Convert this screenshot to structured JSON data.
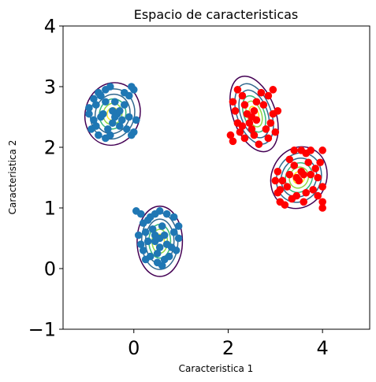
{
  "chart_data": {
    "type": "scatter",
    "title": "Espacio de caracteristicas",
    "xlabel": "Caracteristica 1",
    "ylabel": "Caracteristica 2",
    "xlim": [
      -1.5,
      5
    ],
    "ylim": [
      -1,
      4
    ],
    "xticks": [
      {
        "value": 0,
        "label": "0"
      },
      {
        "value": 2,
        "label": "2"
      },
      {
        "value": 4,
        "label": "4"
      }
    ],
    "yticks": [
      {
        "value": -1,
        "label": "−1"
      },
      {
        "value": 0,
        "label": "0"
      },
      {
        "value": 1,
        "label": "1"
      },
      {
        "value": 2,
        "label": "2"
      },
      {
        "value": 3,
        "label": "3"
      },
      {
        "value": 4,
        "label": "4"
      }
    ],
    "grid": false,
    "legend": "none",
    "contour_colors": [
      "#440154",
      "#31688e",
      "#35b779",
      "#90d743",
      "#fde725"
    ],
    "series": [
      {
        "color": "#1f77b4",
        "points": [
          [
            -0.95,
            2.55
          ],
          [
            -0.9,
            2.3
          ],
          [
            -0.85,
            2.45
          ],
          [
            -0.8,
            2.7
          ],
          [
            -0.8,
            2.35
          ],
          [
            -0.85,
            2.8
          ],
          [
            -0.7,
            2.85
          ],
          [
            -0.75,
            2.2
          ],
          [
            -0.6,
            2.15
          ],
          [
            -0.75,
            2.9
          ],
          [
            -0.6,
            2.95
          ],
          [
            -0.5,
            3.0
          ],
          [
            -0.45,
            2.6
          ],
          [
            -0.35,
            2.55
          ],
          [
            -0.4,
            2.5
          ],
          [
            -0.3,
            2.6
          ],
          [
            -0.25,
            2.45
          ],
          [
            -0.55,
            2.3
          ],
          [
            -0.65,
            2.55
          ],
          [
            -0.5,
            2.2
          ],
          [
            -0.2,
            2.9
          ],
          [
            -0.1,
            2.85
          ],
          [
            0.0,
            2.95
          ],
          [
            -0.05,
            3.0
          ],
          [
            -0.15,
            2.3
          ],
          [
            -0.05,
            2.2
          ],
          [
            0.0,
            2.25
          ],
          [
            -0.2,
            2.7
          ],
          [
            -0.4,
            2.75
          ],
          [
            -0.3,
            2.35
          ],
          [
            -0.7,
            2.5
          ],
          [
            -0.95,
            2.65
          ],
          [
            0.05,
            2.45
          ],
          [
            -0.1,
            2.5
          ],
          [
            -0.6,
            2.75
          ],
          [
            -0.45,
            2.4
          ],
          [
            0.05,
            0.95
          ],
          [
            0.15,
            0.9
          ],
          [
            0.2,
            0.75
          ],
          [
            0.35,
            0.85
          ],
          [
            0.45,
            0.9
          ],
          [
            0.55,
            0.95
          ],
          [
            0.7,
            0.9
          ],
          [
            0.85,
            0.85
          ],
          [
            0.95,
            0.7
          ],
          [
            0.1,
            0.55
          ],
          [
            0.25,
            0.6
          ],
          [
            0.3,
            0.45
          ],
          [
            0.2,
            0.3
          ],
          [
            0.35,
            0.2
          ],
          [
            0.5,
            0.25
          ],
          [
            0.45,
            0.45
          ],
          [
            0.55,
            0.5
          ],
          [
            0.65,
            0.55
          ],
          [
            0.7,
            0.4
          ],
          [
            0.8,
            0.35
          ],
          [
            0.9,
            0.3
          ],
          [
            0.5,
            0.1
          ],
          [
            0.65,
            0.15
          ],
          [
            0.75,
            0.2
          ],
          [
            0.95,
            0.5
          ],
          [
            0.4,
            0.65
          ],
          [
            0.6,
            0.7
          ],
          [
            0.25,
            0.15
          ],
          [
            0.55,
            0.35
          ],
          [
            0.3,
            0.8
          ],
          [
            0.85,
            0.6
          ],
          [
            0.15,
            0.4
          ],
          [
            0.6,
            0.05
          ],
          [
            0.45,
            0.55
          ]
        ]
      },
      {
        "color": "#ff0000",
        "points": [
          [
            2.1,
            2.75
          ],
          [
            2.2,
            2.95
          ],
          [
            2.3,
            2.85
          ],
          [
            2.15,
            2.6
          ],
          [
            2.05,
            2.2
          ],
          [
            2.1,
            2.1
          ],
          [
            2.35,
            2.15
          ],
          [
            2.4,
            2.55
          ],
          [
            2.5,
            2.5
          ],
          [
            2.55,
            2.6
          ],
          [
            2.6,
            2.45
          ],
          [
            2.45,
            2.4
          ],
          [
            2.5,
            2.3
          ],
          [
            2.3,
            2.35
          ],
          [
            2.75,
            2.7
          ],
          [
            2.8,
            2.3
          ],
          [
            2.85,
            2.15
          ],
          [
            2.65,
            2.05
          ],
          [
            2.95,
            2.55
          ],
          [
            2.9,
            2.4
          ],
          [
            3.0,
            2.25
          ],
          [
            2.7,
            2.9
          ],
          [
            2.85,
            2.85
          ],
          [
            2.2,
            2.4
          ],
          [
            2.6,
            2.75
          ],
          [
            2.35,
            2.7
          ],
          [
            2.55,
            2.2
          ],
          [
            2.95,
            2.95
          ],
          [
            3.05,
            2.6
          ],
          [
            2.25,
            2.25
          ],
          [
            3.0,
            1.45
          ],
          [
            3.05,
            1.6
          ],
          [
            3.1,
            1.3
          ],
          [
            3.1,
            1.1
          ],
          [
            3.2,
            1.05
          ],
          [
            3.25,
            1.35
          ],
          [
            3.3,
            1.55
          ],
          [
            3.4,
            1.7
          ],
          [
            3.45,
            1.5
          ],
          [
            3.55,
            1.6
          ],
          [
            3.5,
            1.45
          ],
          [
            3.6,
            1.55
          ],
          [
            3.65,
            1.9
          ],
          [
            3.7,
            1.75
          ],
          [
            3.75,
            1.95
          ],
          [
            3.55,
            1.95
          ],
          [
            3.45,
            1.2
          ],
          [
            3.35,
            1.15
          ],
          [
            3.8,
            1.3
          ],
          [
            3.85,
            1.65
          ],
          [
            3.9,
            1.5
          ],
          [
            3.95,
            1.75
          ],
          [
            4.0,
            1.95
          ],
          [
            4.0,
            1.35
          ],
          [
            4.0,
            1.1
          ],
          [
            4.0,
            1.0
          ],
          [
            3.65,
            1.25
          ],
          [
            3.15,
            1.45
          ],
          [
            3.75,
            1.55
          ],
          [
            3.3,
            1.8
          ],
          [
            3.9,
            1.2
          ],
          [
            3.05,
            1.25
          ],
          [
            3.6,
            1.1
          ],
          [
            3.4,
            1.95
          ]
        ]
      }
    ],
    "contours": [
      {
        "cx": -0.45,
        "cy": 2.55,
        "rx": 0.58,
        "ry": 0.52,
        "rotate": 15
      },
      {
        "cx": 0.55,
        "cy": 0.45,
        "rx": 0.48,
        "ry": 0.58,
        "rotate": 0
      },
      {
        "cx": 2.55,
        "cy": 2.55,
        "rx": 0.45,
        "ry": 0.65,
        "rotate": -20
      },
      {
        "cx": 3.5,
        "cy": 1.5,
        "rx": 0.58,
        "ry": 0.52,
        "rotate": 25
      }
    ]
  }
}
